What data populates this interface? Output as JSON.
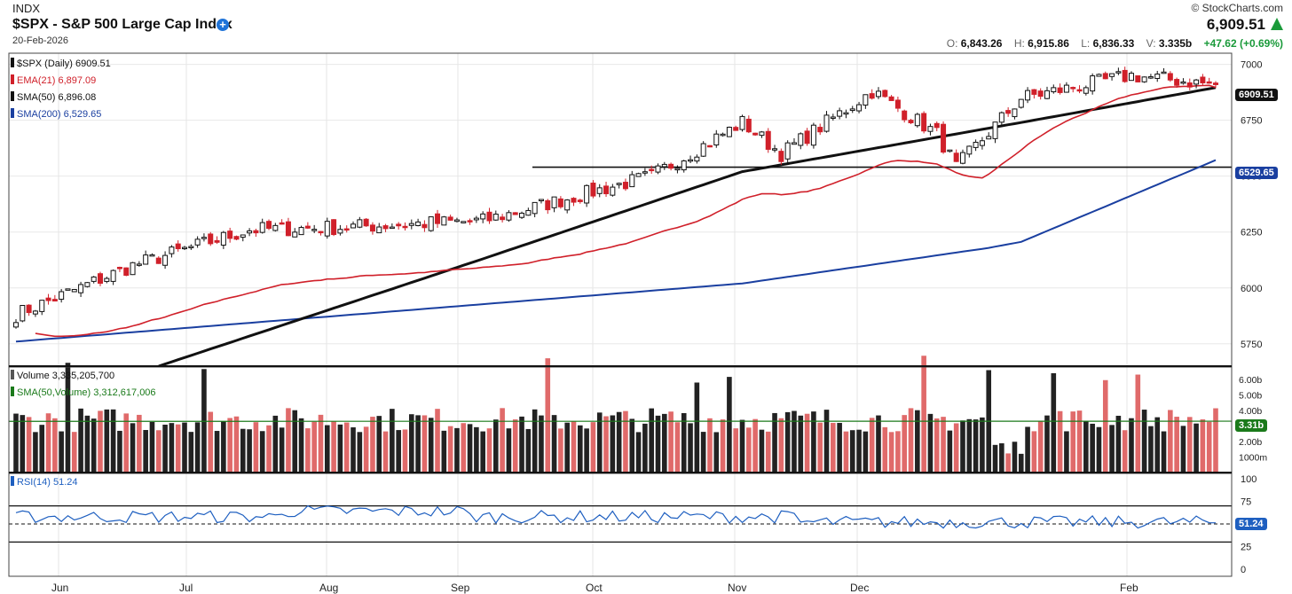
{
  "header": {
    "exchange": "INDX",
    "title": "$SPX - S&P 500 Large Cap Index",
    "date": "20-Feb-2026",
    "brand": "© StockCharts.com",
    "last_price": "6,909.51",
    "open_label": "O:",
    "open": "6,843.26",
    "high_label": "H:",
    "high": "6,915.86",
    "low_label": "L:",
    "low": "6,836.33",
    "volume_label": "V:",
    "volume": "3.335b",
    "change": "+47.62 (+0.69%)"
  },
  "colors": {
    "up": "#111111",
    "down": "#d0202a",
    "ema": "#d0202a",
    "sma50": "#111111",
    "sma200": "#1a3fa0",
    "vol_up": "#222222",
    "vol_down": "#e06a6a",
    "rsi": "#1e5fc0",
    "vol_sma": "#1a7a1a"
  },
  "legend": {
    "price": "$SPX (Daily) 6909.51",
    "ema": "EMA(21) 6,897.09",
    "sma50": "SMA(50) 6,896.08",
    "sma200": "SMA(200) 6,529.65",
    "volume": "Volume 3,335,205,700",
    "volume_sma": "SMA(50,Volume) 3,312,617,006",
    "rsi": "RSI(14) 51.24"
  },
  "tags": {
    "price": "6909.51",
    "sma200": "6529.65",
    "volume": "3.31b",
    "rsi": "51.24"
  },
  "chart_data": {
    "type": "candlestick",
    "x_tick_labels": [
      "Jun",
      "Jul",
      "Aug",
      "Sep",
      "Oct",
      "Nov",
      "Dec",
      "Feb"
    ],
    "price_axis": {
      "ticks": [
        5750,
        6000,
        6250,
        6500,
        6750,
        7000
      ],
      "range": [
        5650,
        7050
      ]
    },
    "support_level": 6540,
    "key_points": [
      {
        "label": "start",
        "close": 5880
      },
      {
        "label": "Jul",
        "close": 6260
      },
      {
        "label": "Aug",
        "close": 6300
      },
      {
        "label": "Sep",
        "close": 6500
      },
      {
        "label": "Oct",
        "close": 6740
      },
      {
        "label": "Oct dip",
        "close": 6600
      },
      {
        "label": "late Oct",
        "close": 6880
      },
      {
        "label": "Nov low",
        "close": 6540
      },
      {
        "label": "Dec",
        "close": 6850
      },
      {
        "label": "Jan",
        "close": 6950
      },
      {
        "label": "end",
        "close": 6909.51
      }
    ],
    "ema21_last": 6897.09,
    "sma50": [
      {
        "label": "start",
        "value": 5600
      },
      {
        "label": "Aug",
        "value": 6130
      },
      {
        "label": "Oct",
        "value": 6520
      },
      {
        "label": "Dec",
        "value": 6740
      },
      {
        "label": "end",
        "value": 6896.08
      }
    ],
    "sma200": [
      {
        "label": "start",
        "value": 5760
      },
      {
        "label": "Oct",
        "value": 6020
      },
      {
        "label": "Dec",
        "value": 6200
      },
      {
        "label": "end",
        "value": 6529.65
      }
    ],
    "volume_axis": {
      "ticks": [
        "6.00b",
        "5.00b",
        "4.00b",
        "3.00b",
        "2.00b",
        "1000m"
      ]
    },
    "volume_sma_last": 3312617006,
    "rsi_axis": {
      "ticks": [
        100,
        75,
        50,
        25,
        0
      ]
    },
    "rsi_levels": [
      70,
      50,
      30
    ],
    "rsi_last": 51.24
  }
}
